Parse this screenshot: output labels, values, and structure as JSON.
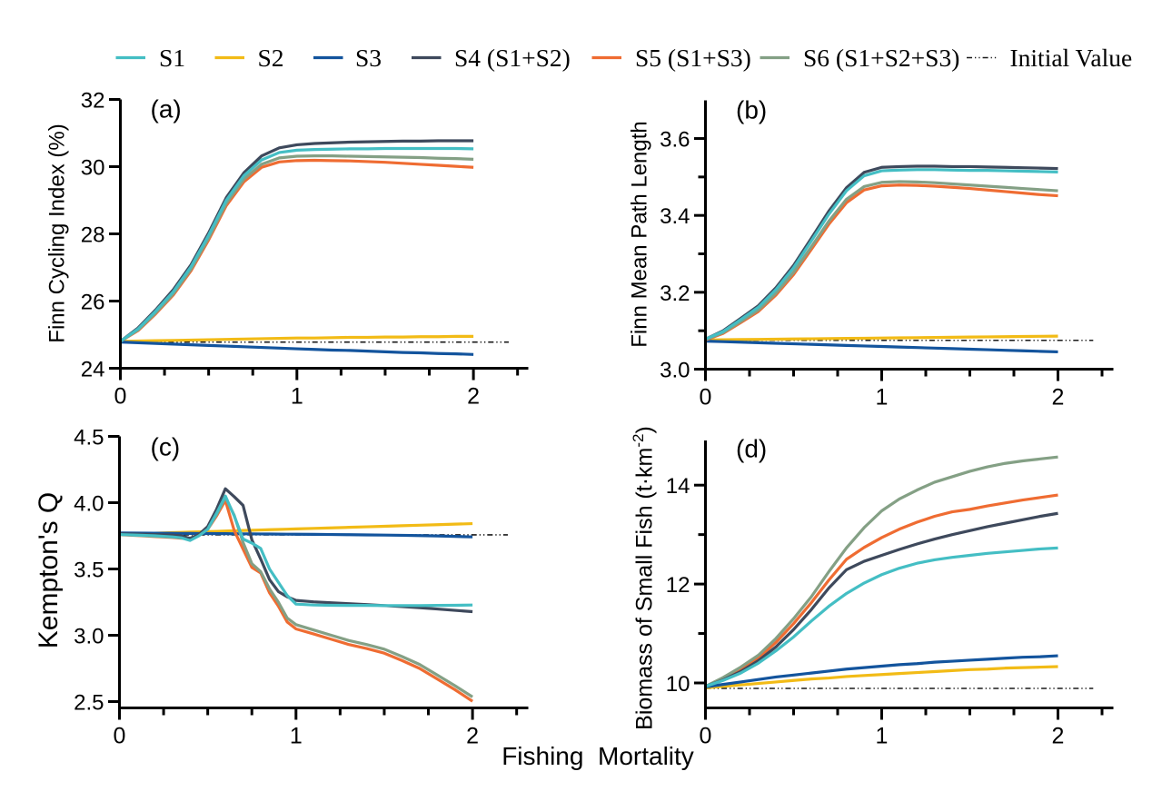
{
  "figure": {
    "background": "#ffffff",
    "xlabel": "Fishing  Mortality",
    "text_color": "#000000",
    "axis_color": "#000000",
    "initial_value_color": "#1a1a1a",
    "legend": {
      "items": [
        {
          "label": "S1",
          "color": "#44bec4",
          "style": "solid"
        },
        {
          "label": "S2",
          "color": "#f2bb16",
          "style": "solid"
        },
        {
          "label": "S3",
          "color": "#13549d",
          "style": "solid"
        },
        {
          "label": "S4 (S1+S2)",
          "color": "#3e495c",
          "style": "solid"
        },
        {
          "label": "S5 (S1+S3)",
          "color": "#ef6c32",
          "style": "solid"
        },
        {
          "label": "S6 (S1+S2+S3)",
          "color": "#84a085",
          "style": "solid"
        },
        {
          "label": "Initial Value",
          "color": "#1a1a1a",
          "style": "dash-dot-dot"
        }
      ]
    }
  },
  "chart_data": [
    {
      "id": "a",
      "type": "line",
      "panel_label": "(a)",
      "ylabel": "Finn Cycling Index (%)",
      "ylabel_parts": [
        {
          "t": "Finn Cycling Index (%)"
        }
      ],
      "xlabel": "Fishing  Mortality",
      "xlim": [
        0,
        2.31
      ],
      "ylim": [
        24,
        32
      ],
      "xticks": [
        0,
        1,
        2
      ],
      "xtick_labels": [
        "0",
        "1",
        "2"
      ],
      "x_minor_ticks": [
        0.25,
        0.5,
        0.75,
        1.25,
        1.5,
        1.75,
        2.25
      ],
      "yticks": [
        24,
        26,
        28,
        30,
        32
      ],
      "ytick_labels": [
        "24",
        "26",
        "28",
        "30",
        "32"
      ],
      "y_minor_ticks": [],
      "grid": false,
      "initial_value": 24.78,
      "x": [
        0,
        0.1,
        0.2,
        0.3,
        0.4,
        0.5,
        0.6,
        0.7,
        0.8,
        0.9,
        1.0,
        1.1,
        1.2,
        1.3,
        1.4,
        1.5,
        1.6,
        1.7,
        1.8,
        1.9,
        2.0
      ],
      "series": [
        {
          "name": "S2",
          "color": "#f2bb16",
          "values": [
            24.8,
            24.81,
            24.82,
            24.83,
            24.84,
            24.85,
            24.86,
            24.87,
            24.88,
            24.89,
            24.9,
            24.9,
            24.91,
            24.92,
            24.92,
            24.93,
            24.93,
            24.94,
            24.94,
            24.95,
            24.95
          ]
        },
        {
          "name": "S3",
          "color": "#13549d",
          "values": [
            24.78,
            24.76,
            24.74,
            24.72,
            24.7,
            24.68,
            24.66,
            24.64,
            24.62,
            24.6,
            24.58,
            24.56,
            24.54,
            24.53,
            24.51,
            24.49,
            24.47,
            24.46,
            24.44,
            24.43,
            24.41
          ]
        },
        {
          "name": "S5 (S1+S3)",
          "color": "#ef6c32",
          "values": [
            24.8,
            25.12,
            25.62,
            26.18,
            26.9,
            27.82,
            28.84,
            29.55,
            29.98,
            30.14,
            30.18,
            30.19,
            30.18,
            30.17,
            30.15,
            30.13,
            30.1,
            30.07,
            30.04,
            30.01,
            29.98
          ]
        },
        {
          "name": "S6 (S1+S2+S3)",
          "color": "#84a085",
          "values": [
            24.8,
            25.14,
            25.65,
            26.22,
            26.95,
            27.88,
            28.91,
            29.63,
            30.07,
            30.26,
            30.31,
            30.32,
            30.32,
            30.31,
            30.3,
            30.29,
            30.28,
            30.27,
            30.25,
            30.24,
            30.22
          ]
        },
        {
          "name": "S4 (S1+S2)",
          "color": "#3e495c",
          "values": [
            24.8,
            25.2,
            25.74,
            26.34,
            27.08,
            28.03,
            29.08,
            29.82,
            30.32,
            30.56,
            30.65,
            30.69,
            30.71,
            30.73,
            30.74,
            30.75,
            30.76,
            30.76,
            30.77,
            30.77,
            30.77
          ]
        },
        {
          "name": "S1",
          "color": "#44bec4",
          "values": [
            24.8,
            25.17,
            25.7,
            26.28,
            27.02,
            27.96,
            29.0,
            29.73,
            30.2,
            30.42,
            30.49,
            30.51,
            30.52,
            30.53,
            30.53,
            30.54,
            30.54,
            30.54,
            30.54,
            30.54,
            30.53
          ]
        }
      ]
    },
    {
      "id": "b",
      "type": "line",
      "panel_label": "(b)",
      "ylabel": "Finn Mean Path Length",
      "ylabel_parts": [
        {
          "t": "Finn Mean Path Length"
        }
      ],
      "xlabel": "Fishing  Mortality",
      "xlim": [
        0,
        2.31
      ],
      "ylim": [
        3.0,
        3.7
      ],
      "xticks": [
        0,
        1,
        2
      ],
      "xtick_labels": [
        "0",
        "1",
        "2"
      ],
      "x_minor_ticks": [
        0.25,
        0.5,
        0.75,
        1.25,
        1.5,
        1.75,
        2.25
      ],
      "yticks": [
        3.0,
        3.2,
        3.4,
        3.6
      ],
      "ytick_labels": [
        "3.0",
        "3.2",
        "3.4",
        "3.6"
      ],
      "y_minor_ticks": [
        3.1,
        3.3,
        3.5
      ],
      "grid": false,
      "initial_value": 3.075,
      "x": [
        0,
        0.1,
        0.2,
        0.3,
        0.4,
        0.5,
        0.6,
        0.7,
        0.8,
        0.9,
        1.0,
        1.1,
        1.2,
        1.3,
        1.4,
        1.5,
        1.6,
        1.7,
        1.8,
        1.9,
        2.0
      ],
      "series": [
        {
          "name": "S2",
          "color": "#f2bb16",
          "values": [
            3.076,
            3.0765,
            3.077,
            3.0775,
            3.078,
            3.0785,
            3.079,
            3.0795,
            3.08,
            3.0805,
            3.081,
            3.0815,
            3.082,
            3.0825,
            3.083,
            3.0835,
            3.084,
            3.0845,
            3.085,
            3.0855,
            3.086
          ]
        },
        {
          "name": "S3",
          "color": "#13549d",
          "values": [
            3.073,
            3.0716,
            3.0702,
            3.0688,
            3.0674,
            3.066,
            3.0646,
            3.0632,
            3.0618,
            3.0604,
            3.059,
            3.0576,
            3.0562,
            3.0548,
            3.0534,
            3.052,
            3.0506,
            3.0492,
            3.0478,
            3.0464,
            3.045
          ]
        },
        {
          "name": "S5 (S1+S3)",
          "color": "#ef6c32",
          "values": [
            3.076,
            3.093,
            3.121,
            3.15,
            3.193,
            3.246,
            3.311,
            3.377,
            3.433,
            3.466,
            3.477,
            3.479,
            3.478,
            3.476,
            3.473,
            3.47,
            3.466,
            3.462,
            3.458,
            3.454,
            3.451
          ]
        },
        {
          "name": "S6 (S1+S2+S3)",
          "color": "#84a085",
          "values": [
            3.077,
            3.095,
            3.124,
            3.154,
            3.198,
            3.252,
            3.318,
            3.385,
            3.442,
            3.475,
            3.486,
            3.488,
            3.487,
            3.485,
            3.482,
            3.479,
            3.476,
            3.473,
            3.47,
            3.467,
            3.464
          ]
        },
        {
          "name": "S4 (S1+S2)",
          "color": "#3e495c",
          "values": [
            3.078,
            3.1,
            3.132,
            3.165,
            3.212,
            3.27,
            3.34,
            3.411,
            3.472,
            3.512,
            3.525,
            3.527,
            3.528,
            3.528,
            3.527,
            3.527,
            3.526,
            3.525,
            3.524,
            3.523,
            3.522
          ]
        },
        {
          "name": "S1",
          "color": "#44bec4",
          "values": [
            3.078,
            3.098,
            3.129,
            3.161,
            3.207,
            3.264,
            3.333,
            3.403,
            3.464,
            3.503,
            3.516,
            3.518,
            3.519,
            3.519,
            3.518,
            3.517,
            3.517,
            3.516,
            3.515,
            3.514,
            3.513
          ]
        }
      ]
    },
    {
      "id": "c",
      "type": "line",
      "panel_label": "(c)",
      "ylabel": "Kempton's Q",
      "ylabel_parts": [
        {
          "t": "Kempton's Q"
        }
      ],
      "xlabel": "Fishing  Mortality",
      "xlim": [
        0,
        2.31
      ],
      "ylim": [
        2.45,
        4.5
      ],
      "xticks": [
        0,
        1,
        2
      ],
      "xtick_labels": [
        "0",
        "1",
        "2"
      ],
      "x_minor_ticks": [
        0.25,
        0.5,
        0.75,
        1.25,
        1.5,
        1.75,
        2.25
      ],
      "yticks": [
        2.5,
        3.0,
        3.5,
        4.0,
        4.5
      ],
      "ytick_labels": [
        "2.5",
        "3.0",
        "3.5",
        "4.0",
        "4.5"
      ],
      "y_minor_ticks": [],
      "grid": false,
      "initial_value": 3.757,
      "x": [
        0,
        0.1,
        0.2,
        0.3,
        0.35,
        0.4,
        0.45,
        0.5,
        0.55,
        0.6,
        0.65,
        0.7,
        0.75,
        0.8,
        0.85,
        0.9,
        0.95,
        1.0,
        1.1,
        1.2,
        1.3,
        1.4,
        1.5,
        1.6,
        1.7,
        1.8,
        1.9,
        2.0
      ],
      "series": [
        {
          "name": "S2",
          "color": "#f2bb16",
          "values": [
            3.762,
            3.766,
            3.77,
            3.774,
            3.776,
            3.778,
            3.78,
            3.782,
            3.784,
            3.786,
            3.788,
            3.79,
            3.792,
            3.794,
            3.796,
            3.798,
            3.8,
            3.802,
            3.806,
            3.81,
            3.814,
            3.818,
            3.822,
            3.826,
            3.83,
            3.834,
            3.838,
            3.842
          ]
        },
        {
          "name": "S3",
          "color": "#13549d",
          "values": [
            3.772,
            3.771,
            3.77,
            3.769,
            3.7685,
            3.768,
            3.7675,
            3.767,
            3.7665,
            3.766,
            3.7655,
            3.765,
            3.7645,
            3.764,
            3.7635,
            3.763,
            3.7625,
            3.762,
            3.761,
            3.76,
            3.7585,
            3.757,
            3.7555,
            3.754,
            3.7515,
            3.749,
            3.7455,
            3.742
          ]
        },
        {
          "name": "S5 (S1+S3)",
          "color": "#ef6c32",
          "values": [
            3.758,
            3.752,
            3.745,
            3.738,
            3.732,
            3.73,
            3.755,
            3.8,
            3.9,
            4.017,
            3.79,
            3.65,
            3.512,
            3.47,
            3.32,
            3.22,
            3.1,
            3.048,
            3.01,
            2.97,
            2.93,
            2.9,
            2.865,
            2.81,
            2.75,
            2.67,
            2.59,
            2.502
          ]
        },
        {
          "name": "S6 (S1+S2+S3)",
          "color": "#84a085",
          "values": [
            3.76,
            3.754,
            3.748,
            3.741,
            3.735,
            3.733,
            3.757,
            3.805,
            3.91,
            4.04,
            3.905,
            3.7,
            3.54,
            3.48,
            3.35,
            3.25,
            3.13,
            3.08,
            3.04,
            3.0,
            2.96,
            2.93,
            2.895,
            2.84,
            2.78,
            2.7,
            2.62,
            2.535
          ]
        },
        {
          "name": "S4 (S1+S2)",
          "color": "#3e495c",
          "values": [
            3.765,
            3.763,
            3.76,
            3.755,
            3.75,
            3.73,
            3.76,
            3.82,
            3.95,
            4.105,
            4.045,
            3.98,
            3.72,
            3.575,
            3.42,
            3.33,
            3.29,
            3.263,
            3.252,
            3.245,
            3.238,
            3.231,
            3.224,
            3.216,
            3.208,
            3.198,
            3.188,
            3.178
          ]
        },
        {
          "name": "S1",
          "color": "#44bec4",
          "values": [
            3.76,
            3.755,
            3.75,
            3.742,
            3.735,
            3.715,
            3.75,
            3.8,
            3.92,
            4.05,
            3.9,
            3.726,
            3.695,
            3.655,
            3.5,
            3.4,
            3.3,
            3.235,
            3.228,
            3.226,
            3.225,
            3.225,
            3.224,
            3.224,
            3.224,
            3.225,
            3.226,
            3.228
          ]
        }
      ]
    },
    {
      "id": "d",
      "type": "line",
      "panel_label": "(d)",
      "ylabel": "Biomass of Small Fish (t·km⁻²)",
      "ylabel_parts": [
        {
          "t": "Biomass of Small Fish (t·km"
        },
        {
          "t": "-2",
          "sup": true
        },
        {
          "t": ")"
        }
      ],
      "xlabel": "Fishing  Mortality",
      "xlim": [
        0,
        2.31
      ],
      "ylim": [
        9.48,
        14.9
      ],
      "xticks": [
        0,
        1,
        2
      ],
      "xtick_labels": [
        "0",
        "1",
        "2"
      ],
      "x_minor_ticks": [
        0.25,
        0.5,
        0.75,
        1.25,
        1.5,
        1.75,
        2.25
      ],
      "yticks": [
        10,
        12,
        14
      ],
      "ytick_labels": [
        "10",
        "12",
        "14"
      ],
      "y_minor_ticks": [
        11,
        13
      ],
      "grid": false,
      "initial_value": 9.89,
      "x": [
        0,
        0.1,
        0.2,
        0.3,
        0.4,
        0.5,
        0.6,
        0.7,
        0.8,
        0.9,
        1.0,
        1.1,
        1.2,
        1.3,
        1.4,
        1.5,
        1.6,
        1.7,
        1.8,
        1.9,
        2.0
      ],
      "series": [
        {
          "name": "S2",
          "color": "#f2bb16",
          "values": [
            9.9,
            9.93,
            9.96,
            9.99,
            10.02,
            10.05,
            10.08,
            10.1,
            10.13,
            10.15,
            10.17,
            10.19,
            10.21,
            10.23,
            10.25,
            10.27,
            10.28,
            10.3,
            10.31,
            10.32,
            10.33
          ]
        },
        {
          "name": "S3",
          "color": "#13549d",
          "values": [
            9.92,
            9.97,
            10.02,
            10.07,
            10.12,
            10.16,
            10.2,
            10.24,
            10.28,
            10.31,
            10.34,
            10.37,
            10.39,
            10.42,
            10.44,
            10.46,
            10.48,
            10.5,
            10.52,
            10.53,
            10.55
          ]
        },
        {
          "name": "S5 (S1+S3)",
          "color": "#ef6c32",
          "values": [
            9.93,
            10.08,
            10.28,
            10.5,
            10.82,
            11.2,
            11.62,
            12.08,
            12.5,
            12.74,
            12.94,
            13.11,
            13.25,
            13.37,
            13.46,
            13.51,
            13.58,
            13.64,
            13.7,
            13.75,
            13.8
          ]
        },
        {
          "name": "S6 (S1+S2+S3)",
          "color": "#84a085",
          "values": [
            9.93,
            10.11,
            10.32,
            10.56,
            10.9,
            11.3,
            11.74,
            12.25,
            12.73,
            13.14,
            13.48,
            13.72,
            13.9,
            14.06,
            14.17,
            14.28,
            14.37,
            14.44,
            14.49,
            14.53,
            14.57
          ]
        },
        {
          "name": "S4 (S1+S2)",
          "color": "#3e495c",
          "values": [
            9.93,
            10.06,
            10.23,
            10.45,
            10.73,
            11.08,
            11.48,
            11.92,
            12.29,
            12.46,
            12.58,
            12.7,
            12.81,
            12.91,
            13.0,
            13.08,
            13.16,
            13.23,
            13.3,
            13.37,
            13.43
          ]
        },
        {
          "name": "S1",
          "color": "#44bec4",
          "values": [
            9.93,
            10.05,
            10.2,
            10.4,
            10.65,
            10.93,
            11.25,
            11.55,
            11.81,
            12.02,
            12.19,
            12.32,
            12.42,
            12.49,
            12.54,
            12.58,
            12.62,
            12.65,
            12.68,
            12.71,
            12.73
          ]
        }
      ]
    }
  ]
}
